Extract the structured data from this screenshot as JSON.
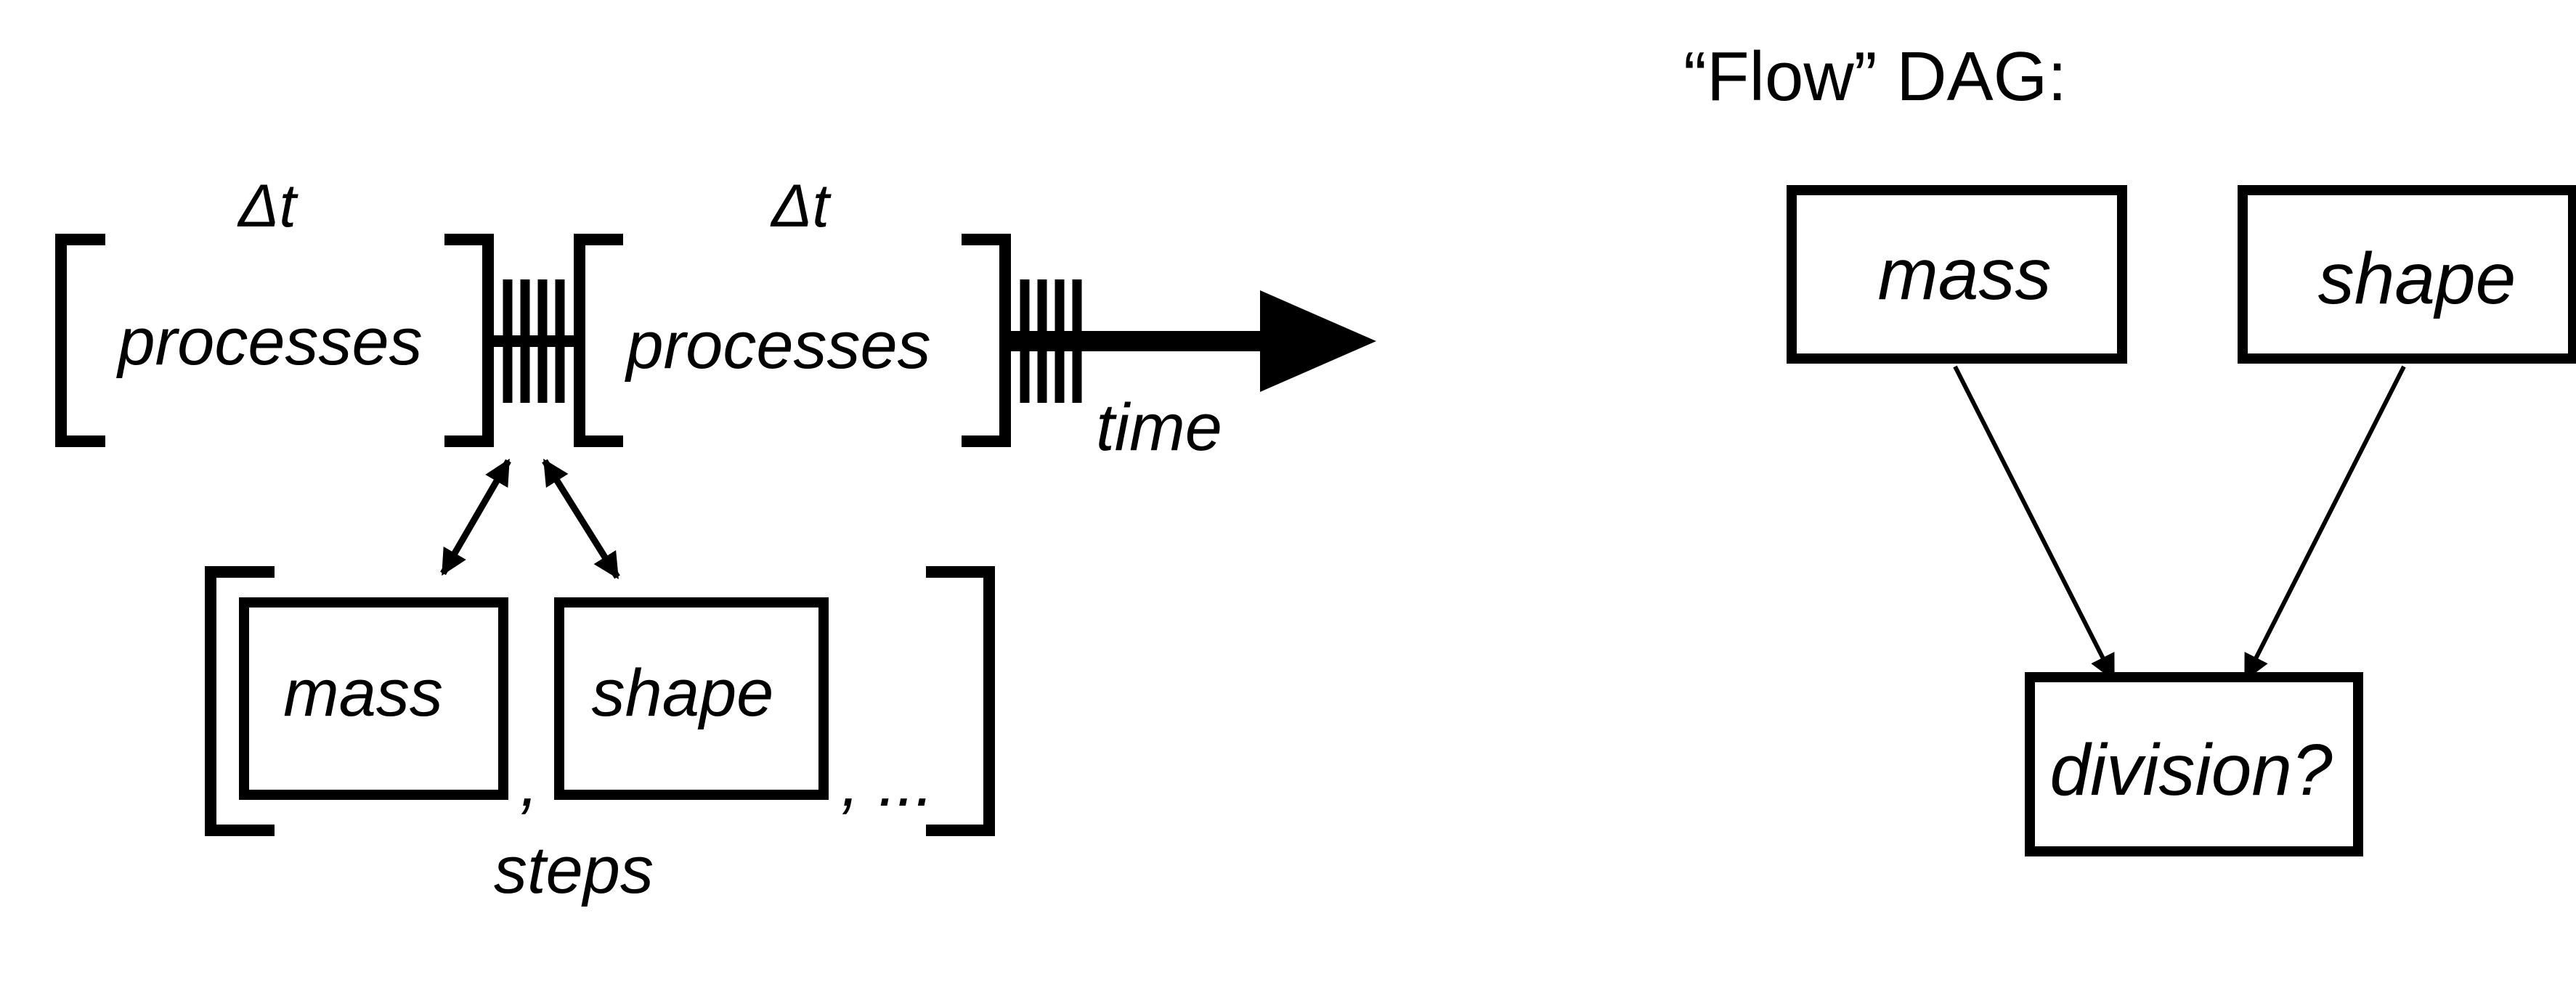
{
  "timeline": {
    "delta_1": "Δt",
    "delta_2": "Δt",
    "process_1": "processes",
    "process_2": "processes",
    "time_label": "time"
  },
  "steps": {
    "mass": "mass",
    "separator_1": ",",
    "shape": "shape",
    "separator_2": ", ...",
    "label": "steps"
  },
  "flow_dag": {
    "title": "“Flow” DAG:",
    "mass": "mass",
    "shape": "shape",
    "division": "division?"
  },
  "colors": {
    "ink": "#000000",
    "background": "#ffffff"
  }
}
